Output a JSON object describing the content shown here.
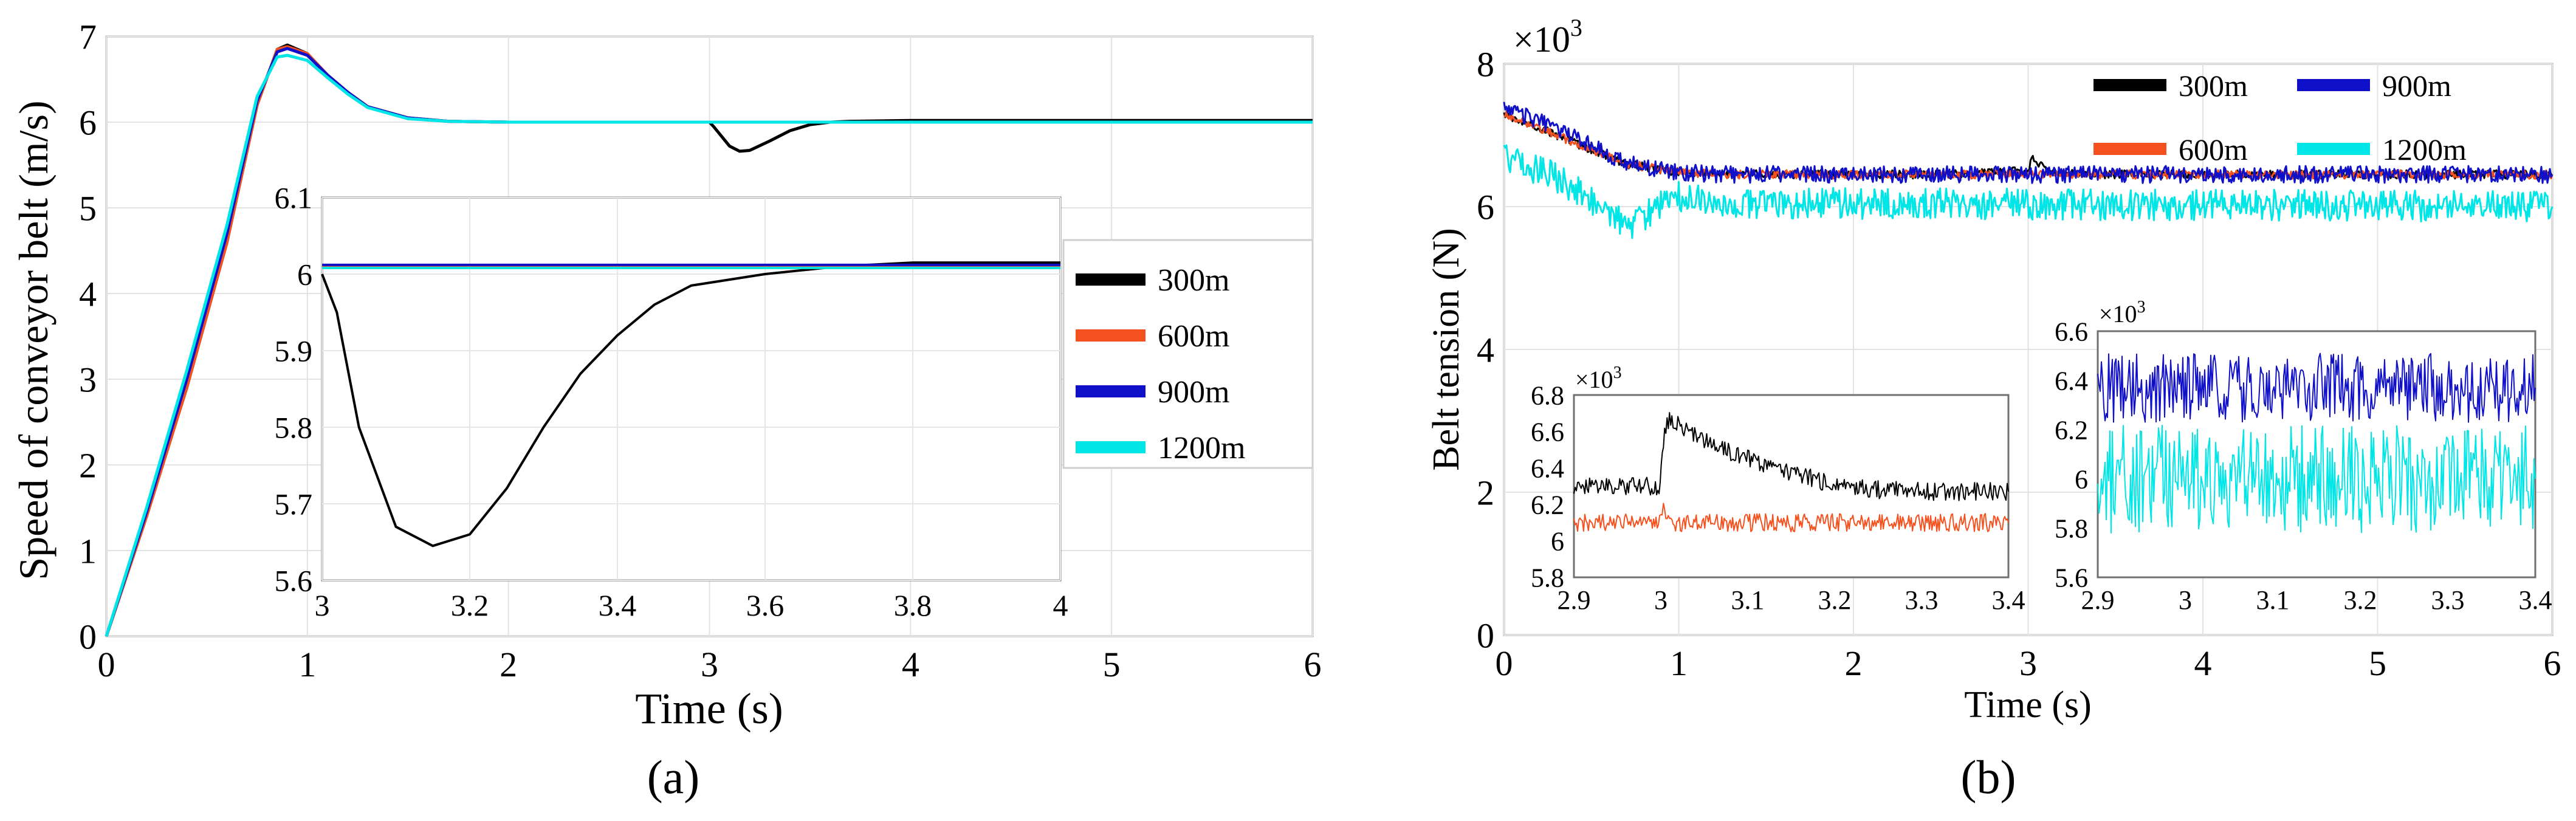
{
  "chart_data": [
    {
      "id": "a",
      "type": "line",
      "caption": "(a)",
      "xlabel": "Time (s)",
      "ylabel": "Speed of conveyor belt (m/s)",
      "xlim": [
        0,
        6
      ],
      "ylim": [
        0,
        7
      ],
      "xticks": [
        "0",
        "1",
        "2",
        "3",
        "4",
        "5",
        "6"
      ],
      "yticks": [
        "0",
        "1",
        "2",
        "3",
        "4",
        "5",
        "6",
        "7"
      ],
      "series": [
        {
          "name": "300m",
          "color": "#000000",
          "x": [
            0,
            0.2,
            0.4,
            0.6,
            0.75,
            0.85,
            0.9,
            1.0,
            1.1,
            1.2,
            1.3,
            1.5,
            1.7,
            2.0,
            3.0,
            3.02,
            3.1,
            3.15,
            3.2,
            3.3,
            3.4,
            3.5,
            3.6,
            3.7,
            4.0,
            6.0
          ],
          "y": [
            0,
            1.4,
            2.9,
            4.6,
            6.2,
            6.85,
            6.9,
            6.8,
            6.55,
            6.35,
            6.18,
            6.05,
            6.01,
            6.0,
            6.0,
            5.95,
            5.72,
            5.66,
            5.67,
            5.78,
            5.9,
            5.97,
            6.0,
            6.01,
            6.02,
            6.02
          ]
        },
        {
          "name": "600m",
          "color": "#f4511e",
          "x": [
            0,
            0.2,
            0.4,
            0.6,
            0.75,
            0.85,
            0.9,
            1.0,
            1.1,
            1.2,
            1.3,
            1.5,
            1.7,
            2.0,
            6.0
          ],
          "y": [
            0,
            1.4,
            2.9,
            4.6,
            6.2,
            6.85,
            6.88,
            6.8,
            6.55,
            6.35,
            6.18,
            6.05,
            6.01,
            6.0,
            6.0
          ]
        },
        {
          "name": "900m",
          "color": "#1010c8",
          "x": [
            0,
            0.2,
            0.4,
            0.6,
            0.75,
            0.85,
            0.9,
            1.0,
            1.1,
            1.2,
            1.3,
            1.5,
            1.7,
            2.0,
            6.0
          ],
          "y": [
            0,
            1.45,
            3.0,
            4.7,
            6.25,
            6.82,
            6.86,
            6.78,
            6.55,
            6.35,
            6.18,
            6.05,
            6.01,
            6.0,
            6.0
          ]
        },
        {
          "name": "1200m",
          "color": "#00e5e5",
          "x": [
            0,
            0.2,
            0.4,
            0.6,
            0.75,
            0.85,
            0.9,
            1.0,
            1.1,
            1.2,
            1.3,
            1.5,
            1.7,
            2.0,
            6.0
          ],
          "y": [
            0,
            1.5,
            3.1,
            4.8,
            6.3,
            6.76,
            6.78,
            6.72,
            6.52,
            6.33,
            6.17,
            6.04,
            6.01,
            6.0,
            6.0
          ]
        }
      ],
      "inset": {
        "xlim": [
          3,
          4
        ],
        "ylim": [
          5.6,
          6.1
        ],
        "xticks": [
          "3",
          "3.2",
          "3.4",
          "3.6",
          "3.8",
          "4"
        ],
        "yticks": [
          "5.6",
          "5.7",
          "5.8",
          "5.9",
          "6",
          "6.1"
        ],
        "series": [
          {
            "name": "300m",
            "color": "#000000",
            "x": [
              3.0,
              3.02,
              3.05,
              3.1,
              3.15,
              3.2,
              3.25,
              3.3,
              3.35,
              3.4,
              3.45,
              3.5,
              3.6,
              3.7,
              3.8,
              3.9,
              4.0
            ],
            "y": [
              6.0,
              5.95,
              5.8,
              5.67,
              5.645,
              5.66,
              5.72,
              5.8,
              5.87,
              5.92,
              5.96,
              5.985,
              6.0,
              6.01,
              6.015,
              6.015,
              6.015
            ]
          },
          {
            "name": "600m",
            "color": "#f4511e",
            "x": [
              3.0,
              4.0
            ],
            "y": [
              6.01,
              6.01
            ]
          },
          {
            "name": "900m",
            "color": "#1010c8",
            "x": [
              3.0,
              4.0
            ],
            "y": [
              6.012,
              6.012
            ]
          },
          {
            "name": "1200m",
            "color": "#00e5e5",
            "x": [
              3.0,
              4.0
            ],
            "y": [
              6.008,
              6.008
            ]
          }
        ]
      }
    },
    {
      "id": "b",
      "type": "line",
      "caption": "(b)",
      "xlabel": "Time (s)",
      "ylabel": "Belt tension (N)",
      "multiplier": "×10",
      "multiplier_exp": "3",
      "xlim": [
        0,
        6
      ],
      "ylim": [
        0,
        8
      ],
      "xticks": [
        "0",
        "1",
        "2",
        "3",
        "4",
        "5",
        "6"
      ],
      "yticks": [
        "0",
        "2",
        "4",
        "6",
        "8"
      ],
      "series": [
        {
          "name": "300m",
          "color": "#000000",
          "x": [
            0,
            0.7,
            0.95,
            1.2,
            2.5,
            3.0,
            3.02,
            3.1,
            3.3,
            6.0
          ],
          "y": [
            7.3,
            6.6,
            6.5,
            6.45,
            6.45,
            6.5,
            6.7,
            6.5,
            6.45,
            6.45
          ]
        },
        {
          "name": "600m",
          "color": "#f4511e",
          "x": [
            0,
            0.7,
            0.95,
            1.2,
            6.0
          ],
          "y": [
            7.3,
            6.6,
            6.5,
            6.45,
            6.45
          ]
        },
        {
          "name": "900m",
          "color": "#1010c8",
          "x": [
            0,
            0.3,
            0.7,
            0.95,
            1.2,
            6.0
          ],
          "y": [
            7.4,
            7.1,
            6.6,
            6.5,
            6.45,
            6.45
          ]
        },
        {
          "name": "1200m",
          "color": "#00e5e5",
          "x": [
            0,
            0.3,
            0.55,
            0.72,
            0.85,
            1.0,
            1.3,
            6.0
          ],
          "y": [
            6.7,
            6.4,
            6.0,
            5.7,
            5.95,
            6.15,
            6.05,
            6.0
          ]
        }
      ],
      "insets": [
        {
          "multiplier": "×10",
          "multiplier_exp": "3",
          "xlim": [
            2.9,
            3.4
          ],
          "ylim": [
            5.8,
            6.8
          ],
          "xticks": [
            "2.9",
            "3",
            "3.1",
            "3.2",
            "3.3",
            "3.4"
          ],
          "yticks": [
            "5.8",
            "6",
            "6.2",
            "6.4",
            "6.6",
            "6.8"
          ],
          "series": [
            {
              "name": "300m",
              "color": "#000000",
              "x": [
                2.9,
                2.95,
                2.998,
                3.003,
                3.01,
                3.05,
                3.1,
                3.15,
                3.2,
                3.25,
                3.3,
                3.35,
                3.4
              ],
              "y": [
                6.3,
                6.3,
                6.3,
                6.55,
                6.68,
                6.55,
                6.45,
                6.37,
                6.31,
                6.28,
                6.27,
                6.27,
                6.27
              ]
            },
            {
              "name": "600m",
              "color": "#f4511e",
              "x": [
                2.9,
                3.0,
                3.003,
                3.01,
                3.4
              ],
              "y": [
                6.1,
                6.1,
                6.2,
                6.1,
                6.1
              ]
            }
          ]
        },
        {
          "multiplier": "×10",
          "multiplier_exp": "3",
          "xlim": [
            2.9,
            3.4
          ],
          "ylim": [
            5.6,
            6.6
          ],
          "xticks": [
            "2.9",
            "3",
            "3.1",
            "3.2",
            "3.3",
            "3.4"
          ],
          "yticks": [
            "5.6",
            "5.8",
            "6",
            "6.2",
            "6.4",
            "6.6"
          ],
          "series": [
            {
              "name": "900m",
              "color": "#1010c8",
              "x": [
                2.9,
                3.4
              ],
              "y": [
                6.37,
                6.37
              ]
            },
            {
              "name": "1200m",
              "color": "#00e5e5",
              "x": [
                2.9,
                3.4
              ],
              "y": [
                6.0,
                6.0
              ]
            }
          ]
        }
      ]
    }
  ]
}
